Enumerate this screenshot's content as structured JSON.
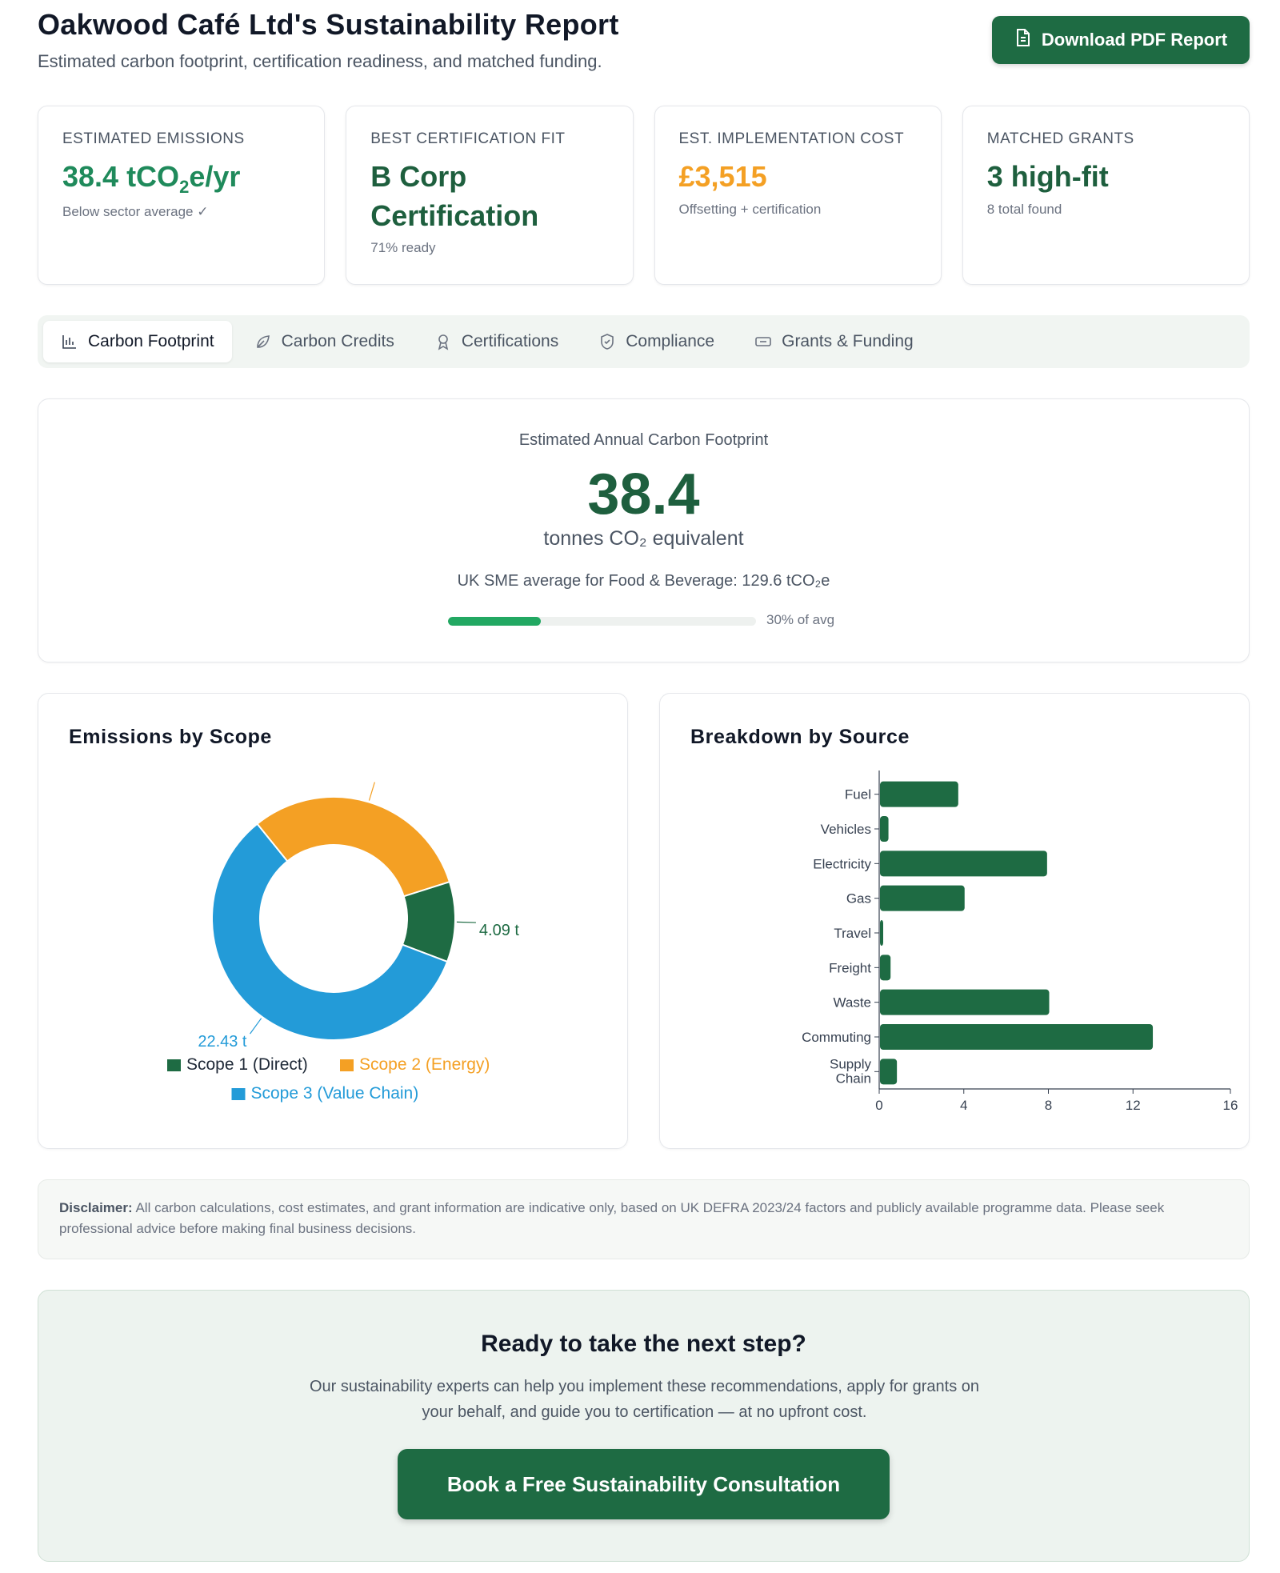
{
  "header": {
    "title": "Oakwood Café Ltd's Sustainability Report",
    "subtitle": "Estimated carbon footprint, certification readiness, and matched funding.",
    "download_label": "Download PDF Report"
  },
  "kpis": [
    {
      "label": "Estimated Emissions",
      "value_main": "38.4 tCO",
      "value_sub": "2",
      "value_tail": "e/yr",
      "sub": "Below sector average ✓"
    },
    {
      "label": "Best Certification Fit",
      "value": "B Corp Certification",
      "sub": "71% ready"
    },
    {
      "label": "Est. Implementation Cost",
      "value": "£3,515",
      "sub": "Offsetting + certification"
    },
    {
      "label": "Matched Grants",
      "value": "3 high-fit",
      "sub": "8 total found"
    }
  ],
  "tabs": [
    {
      "label": "Carbon Footprint",
      "icon": "bar-chart-icon",
      "active": true
    },
    {
      "label": "Carbon Credits",
      "icon": "leaf-icon",
      "active": false
    },
    {
      "label": "Certifications",
      "icon": "award-icon",
      "active": false
    },
    {
      "label": "Compliance",
      "icon": "shield-icon",
      "active": false
    },
    {
      "label": "Grants & Funding",
      "icon": "ticket-icon",
      "active": false
    }
  ],
  "footprint": {
    "label": "Estimated Annual Carbon Footprint",
    "value": "38.4",
    "unit": "tonnes CO₂ equivalent",
    "avg_text": "UK SME average for Food & Beverage: 129.6 tCO₂e",
    "percent_of_avg": 30,
    "percent_label": "30% of avg"
  },
  "chart_data": [
    {
      "type": "pie",
      "title": "Emissions by Scope",
      "labels": [
        "Scope 1 (Direct)",
        "Scope 2 (Energy)",
        "Scope 3 (Value Chain)"
      ],
      "values": [
        4.09,
        11.88,
        22.43
      ],
      "data_labels": [
        "4.09 t",
        "",
        "22.43 t"
      ],
      "colors": [
        "#1e6b43",
        "#f4a024",
        "#239bd8"
      ],
      "donut": true
    },
    {
      "type": "bar",
      "orientation": "horizontal",
      "title": "Breakdown by Source",
      "categories": [
        "Fuel",
        "Vehicles",
        "Electricity",
        "Gas",
        "Travel",
        "Freight",
        "Waste",
        "Commuting",
        "Supply Chain"
      ],
      "values": [
        3.7,
        0.4,
        7.9,
        4.0,
        0.15,
        0.5,
        8.0,
        12.9,
        0.8
      ],
      "xlim": [
        0,
        16
      ],
      "xticks": [
        0,
        4,
        8,
        12,
        16
      ],
      "color": "#1e6b43"
    }
  ],
  "disclaimer": {
    "bold": "Disclaimer:",
    "text": " All carbon calculations, cost estimates, and grant information are indicative only, based on UK DEFRA 2023/24 factors and publicly available programme data. Please seek professional advice before making final business decisions."
  },
  "cta": {
    "title": "Ready to take the next step?",
    "text": "Our sustainability experts can help you implement these recommendations, apply for grants on your behalf, and guide you to certification — at no upfront cost.",
    "button": "Book a Free Sustainability Consultation"
  }
}
